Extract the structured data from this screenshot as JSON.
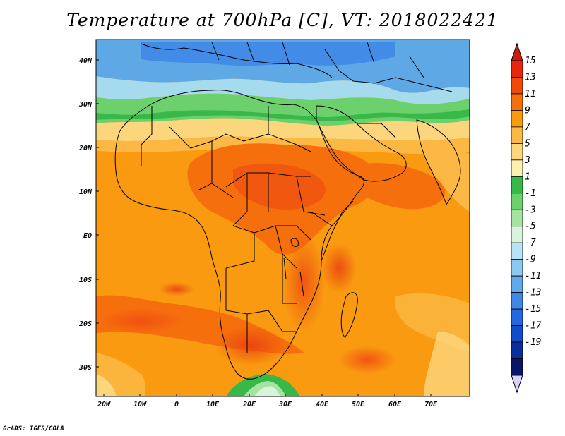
{
  "title": "Temperature at 700hPa [C], VT: 2018022421",
  "credit": "GrADS: IGES/COLA",
  "map": {
    "lat_ticks": [
      "40N",
      "30N",
      "20N",
      "10N",
      "EQ",
      "10S",
      "20S",
      "30S"
    ],
    "lon_ticks": [
      "20W",
      "10W",
      "0",
      "10E",
      "20E",
      "30E",
      "40E",
      "50E",
      "60E",
      "70E"
    ]
  },
  "colorbar": {
    "levels": [
      "15",
      "13",
      "11",
      "9",
      "7",
      "5",
      "3",
      "1",
      "-1",
      "-3",
      "-5",
      "-7",
      "-9",
      "-11",
      "-13",
      "-15",
      "-17",
      "-19"
    ],
    "colors": [
      "#e8260d",
      "#f04a0a",
      "#f66f0d",
      "#f99a10",
      "#fbb844",
      "#fcd67d",
      "#fdf0b0",
      "#39b84a",
      "#6cd06c",
      "#a4e3a0",
      "#d8f5dc",
      "#b6e3f6",
      "#8cc8f0",
      "#62a9ec",
      "#3f88e8",
      "#2368de",
      "#124bcc",
      "#0a2e9e",
      "#0a1468"
    ],
    "top_arrow_color": "#d21a0a",
    "bottom_arrow_color": "#d9d4f7"
  }
}
